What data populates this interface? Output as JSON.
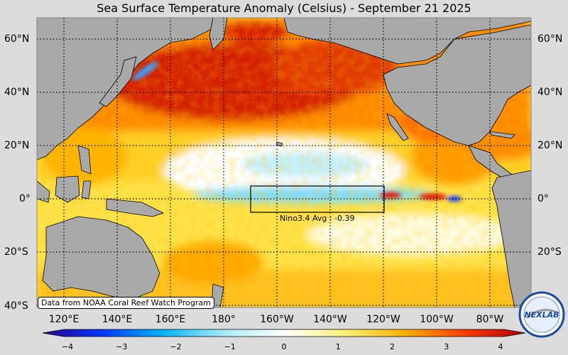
{
  "title": "Sea Surface Temperature Anomaly (Celsius) - September 21 2025",
  "credit": "Data from NOAA Coral Reef Watch Program",
  "nino_box_label": "Nino3.4 Avg : -0.39",
  "logo_text": "NEXLAB",
  "lat_labels": [
    "60°N",
    "40°N",
    "20°N",
    "0°",
    "20°S",
    "40°S"
  ],
  "lon_labels": [
    "120°E",
    "140°E",
    "160°E",
    "180°",
    "160°W",
    "140°W",
    "120°W",
    "100°W",
    "80°W"
  ],
  "colorbar": {
    "ticks": [
      "−4",
      "−3",
      "−2",
      "−1",
      "0",
      "1",
      "2",
      "3",
      "4"
    ],
    "min": -4,
    "max": 4,
    "colors": [
      "#2a0090",
      "#0038ff",
      "#00b4ff",
      "#a8ecff",
      "#ffffff",
      "#fff27a",
      "#ffb000",
      "#ff3a00",
      "#b00000"
    ]
  },
  "colors": {
    "land": "#a9a9a9",
    "background": "#dcdcdc",
    "warm_strong": "#d62000",
    "warm_mid": "#ff7a00",
    "warm_light": "#ffd000",
    "neutral": "#ffffff",
    "cool_light": "#b8f0ff",
    "cool_mid": "#40c8ff"
  }
}
